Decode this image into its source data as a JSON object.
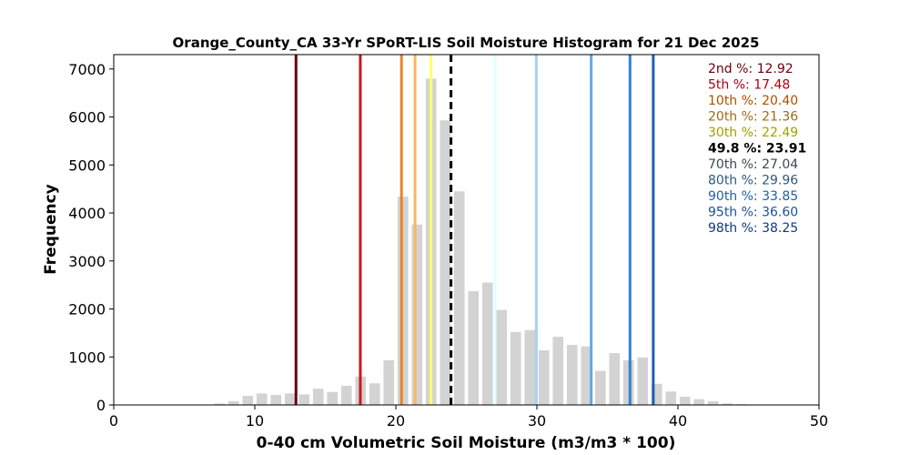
{
  "chart_data": {
    "type": "bar",
    "title": "Orange_County_CA 33-Yr SPoRT-LIS Soil Moisture Histogram for 21 Dec 2025",
    "xlabel": "0-40 cm Volumetric Soil Moisture (m3/m3 * 100)",
    "ylabel": "Frequency",
    "xlim": [
      0,
      50
    ],
    "ylim": [
      0,
      7300
    ],
    "xticks": [
      0,
      10,
      20,
      30,
      40,
      50
    ],
    "yticks": [
      0,
      1000,
      2000,
      3000,
      4000,
      5000,
      6000,
      7000
    ],
    "bar_color": "#d3d3d3",
    "bins": [
      {
        "x": 7.5,
        "count": 30
      },
      {
        "x": 8.5,
        "count": 80
      },
      {
        "x": 9.5,
        "count": 190
      },
      {
        "x": 10.5,
        "count": 240
      },
      {
        "x": 11.5,
        "count": 210
      },
      {
        "x": 12.5,
        "count": 240
      },
      {
        "x": 13.5,
        "count": 220
      },
      {
        "x": 14.5,
        "count": 340
      },
      {
        "x": 15.5,
        "count": 270
      },
      {
        "x": 16.5,
        "count": 400
      },
      {
        "x": 17.5,
        "count": 590
      },
      {
        "x": 18.5,
        "count": 450
      },
      {
        "x": 19.5,
        "count": 930
      },
      {
        "x": 20.5,
        "count": 4340
      },
      {
        "x": 21.5,
        "count": 3760
      },
      {
        "x": 22.5,
        "count": 6800
      },
      {
        "x": 23.5,
        "count": 5930
      },
      {
        "x": 24.5,
        "count": 4450
      },
      {
        "x": 25.5,
        "count": 2370
      },
      {
        "x": 26.5,
        "count": 2550
      },
      {
        "x": 27.5,
        "count": 1980
      },
      {
        "x": 28.5,
        "count": 1520
      },
      {
        "x": 29.5,
        "count": 1560
      },
      {
        "x": 30.5,
        "count": 1140
      },
      {
        "x": 31.5,
        "count": 1420
      },
      {
        "x": 32.5,
        "count": 1250
      },
      {
        "x": 33.5,
        "count": 1220
      },
      {
        "x": 34.5,
        "count": 710
      },
      {
        "x": 35.5,
        "count": 1080
      },
      {
        "x": 36.5,
        "count": 930
      },
      {
        "x": 37.5,
        "count": 990
      },
      {
        "x": 38.5,
        "count": 440
      },
      {
        "x": 39.5,
        "count": 280
      },
      {
        "x": 40.5,
        "count": 170
      },
      {
        "x": 41.5,
        "count": 120
      },
      {
        "x": 42.5,
        "count": 80
      },
      {
        "x": 43.5,
        "count": 30
      },
      {
        "x": 44.5,
        "count": 15
      }
    ],
    "percentile_lines": [
      {
        "label": "2nd %: 12.92",
        "value": 12.92,
        "color": "#67000d",
        "dashed": false
      },
      {
        "label": "5th %: 17.48",
        "value": 17.48,
        "color": "#cb181d",
        "dashed": false
      },
      {
        "label": "10th %: 20.40",
        "value": 20.4,
        "color": "#e6852c",
        "dashed": false
      },
      {
        "label": "20th %: 21.36",
        "value": 21.36,
        "color": "#fdb462",
        "dashed": false
      },
      {
        "label": "30th %: 22.49",
        "value": 22.49,
        "color": "#ffff66",
        "dashed": false
      },
      {
        "label": "49.8 %: 23.91",
        "value": 23.91,
        "color": "#000000",
        "dashed": true
      },
      {
        "label": "70th %: 27.04",
        "value": 27.04,
        "color": "#e0ffff",
        "dashed": false
      },
      {
        "label": "80th %: 29.96",
        "value": 29.96,
        "color": "#a6d1f2",
        "dashed": false
      },
      {
        "label": "90th %: 33.85",
        "value": 33.85,
        "color": "#63a8e6",
        "dashed": false
      },
      {
        "label": "95th %: 36.60",
        "value": 36.6,
        "color": "#3182d0",
        "dashed": false
      },
      {
        "label": "98th %: 38.25",
        "value": 38.25,
        "color": "#1e5fb0",
        "dashed": false
      }
    ],
    "percentile_label_colors": [
      "#67000d",
      "#b00010",
      "#b05000",
      "#a06a1a",
      "#a0a000",
      "#000000",
      "#3a4a4a",
      "#2a5a80",
      "#1f5fa8",
      "#1a4f9a",
      "#103a80"
    ],
    "legend_placement": "top-right",
    "grid": false
  }
}
